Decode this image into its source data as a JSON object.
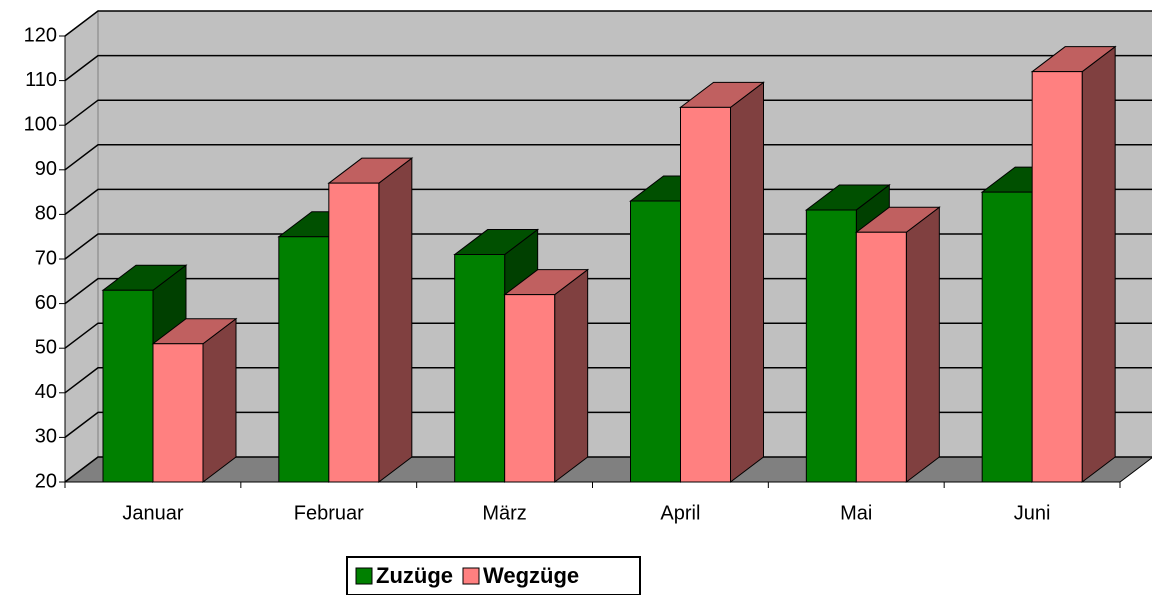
{
  "chart_data": {
    "type": "bar3d",
    "categories": [
      "Januar",
      "Februar",
      "März",
      "April",
      "Mai",
      "Juni"
    ],
    "series": [
      {
        "name": "Zuzüge",
        "color": "#008000",
        "values": [
          63,
          75,
          71,
          83,
          81,
          85
        ]
      },
      {
        "name": "Wegzüge",
        "color": "#ff8080",
        "values": [
          51,
          87,
          62,
          104,
          76,
          112
        ]
      }
    ],
    "ylim": [
      20,
      120
    ],
    "yticks": [
      20,
      30,
      40,
      50,
      60,
      70,
      80,
      90,
      100,
      110,
      120
    ],
    "grid": true,
    "legend": "bottom"
  }
}
